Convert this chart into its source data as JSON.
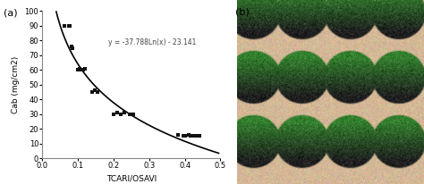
{
  "scatter_x": [
    0.063,
    0.075,
    0.078,
    0.082,
    0.085,
    0.1,
    0.105,
    0.11,
    0.115,
    0.12,
    0.14,
    0.148,
    0.155,
    0.2,
    0.21,
    0.22,
    0.23,
    0.245,
    0.255,
    0.38,
    0.395,
    0.4,
    0.41,
    0.415,
    0.42,
    0.43,
    0.44
  ],
  "scatter_y": [
    90,
    90,
    90,
    76,
    75,
    60,
    61,
    60,
    60,
    61,
    45,
    46,
    45,
    30,
    31,
    30,
    31,
    30,
    30,
    16,
    15,
    15,
    16,
    15,
    15,
    15,
    15
  ],
  "equation": "y = -37.788Ln(x) - 23.141",
  "xlabel": "TCARI/OSAVI",
  "ylabel": "Cab (mg/cm2)",
  "xlim": [
    0,
    0.5
  ],
  "ylim": [
    0,
    100
  ],
  "xticks": [
    0,
    0.1,
    0.2,
    0.3,
    0.4,
    0.5
  ],
  "yticks": [
    0,
    10,
    20,
    30,
    40,
    50,
    60,
    70,
    80,
    90,
    100
  ],
  "label_a": "(a)",
  "label_b": "(b)",
  "line_color": "#000000",
  "scatter_color": "#111111",
  "bg_right": "#d4b896",
  "sphere_dark": "#1c1c1c",
  "sphere_green_dark": "#2a5c2a",
  "sphere_green_mid": "#3a8c3a",
  "sphere_green_light": "#4aaa4a"
}
